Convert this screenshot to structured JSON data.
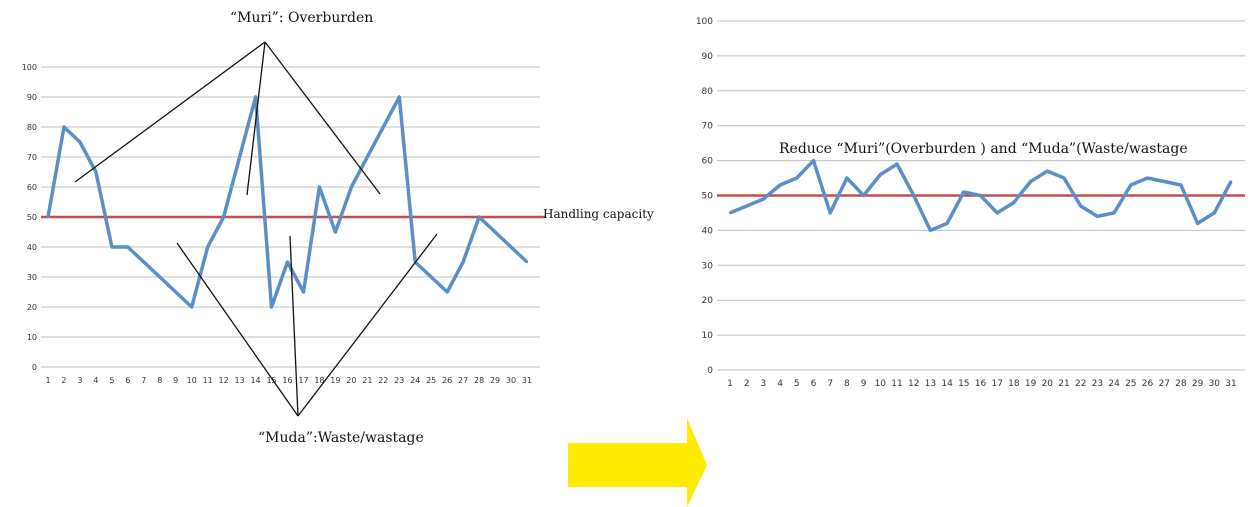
{
  "colors": {
    "series": "#5b8fc7",
    "capacity": "#c0504d",
    "grid": "#bfbfbf",
    "annotation_lines": "#111111",
    "arrow": "#ffeb00"
  },
  "annotations": {
    "muri": "“Muri”: Overburden",
    "muda": "“Muda”:Waste/wastage",
    "handling_capacity": "Handling capacity",
    "reduce": "Reduce “Muri”(Overburden ) and “Muda”(Waste/wastage"
  },
  "arrow_icon": "right-arrow-icon",
  "chart_data": [
    {
      "type": "line",
      "x": [
        1,
        2,
        3,
        4,
        5,
        6,
        7,
        8,
        9,
        10,
        11,
        12,
        13,
        14,
        15,
        16,
        17,
        18,
        19,
        20,
        21,
        22,
        23,
        24,
        25,
        26,
        27,
        28,
        29,
        30,
        31
      ],
      "series": [
        {
          "values": [
            50,
            80,
            75,
            65,
            40,
            40,
            35,
            30,
            25,
            20,
            40,
            50,
            70,
            90,
            20,
            35,
            25,
            60,
            45,
            60,
            70,
            80,
            90,
            35,
            30,
            25,
            35,
            50,
            45,
            40,
            35
          ]
        }
      ],
      "reference_line": {
        "y": 50,
        "label": "Handling capacity"
      },
      "ylim": [
        0,
        100
      ],
      "yticks": [
        0,
        10,
        20,
        30,
        40,
        50,
        60,
        70,
        80,
        90,
        100
      ],
      "grid": true
    },
    {
      "type": "line",
      "x": [
        1,
        2,
        3,
        4,
        5,
        6,
        7,
        8,
        9,
        10,
        11,
        12,
        13,
        14,
        15,
        16,
        17,
        18,
        19,
        20,
        21,
        22,
        23,
        24,
        25,
        26,
        27,
        28,
        29,
        30,
        31
      ],
      "series": [
        {
          "values": [
            45,
            47,
            49,
            53,
            55,
            60,
            45,
            55,
            50,
            56,
            59,
            50,
            40,
            42,
            51,
            50,
            45,
            48,
            54,
            57,
            55,
            47,
            44,
            45,
            53,
            55,
            54,
            53,
            42,
            45,
            54
          ]
        }
      ],
      "reference_line": {
        "y": 50
      },
      "ylim": [
        0,
        100
      ],
      "yticks": [
        0,
        10,
        20,
        30,
        40,
        50,
        60,
        70,
        80,
        90,
        100
      ],
      "grid": true
    }
  ]
}
